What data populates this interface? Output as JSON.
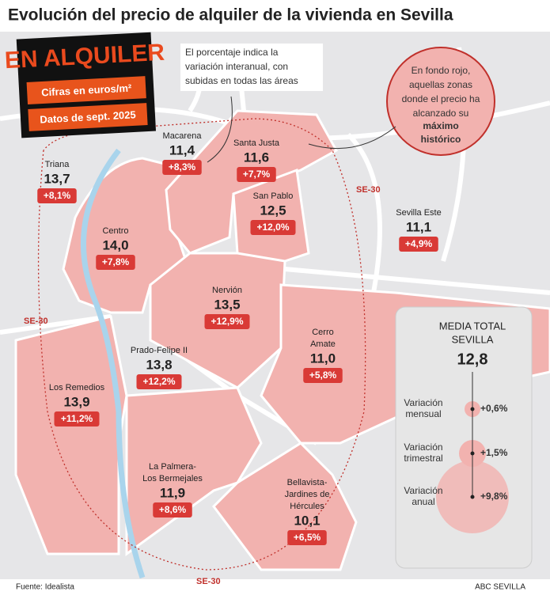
{
  "title": "Evolución del precio de alquiler de la vivienda en Sevilla",
  "badge": {
    "title": "EN ALQUILER",
    "lines": [
      "Cifras en euros/m²",
      "Datos de sept. 2025"
    ]
  },
  "note": [
    "El porcentaje indica la",
    "variación interanual, con",
    "subidas en todas las áreas"
  ],
  "legend_note": {
    "lines": [
      "En fondo rojo,",
      "aquellas zonas",
      "donde el precio ha",
      "alcanzado su"
    ],
    "bold_lines": [
      "máximo",
      "histórico"
    ]
  },
  "ring_road": "SE-30",
  "areas": [
    {
      "name": [
        "Triana"
      ],
      "price": "13,7",
      "change": "+8,1%"
    },
    {
      "name": [
        "Macarena"
      ],
      "price": "11,4",
      "change": "+8,3%"
    },
    {
      "name": [
        "Santa Justa"
      ],
      "price": "11,6",
      "change": "+7,7%"
    },
    {
      "name": [
        "San Pablo"
      ],
      "price": "12,5",
      "change": "+12,0%"
    },
    {
      "name": [
        "Sevilla Este"
      ],
      "price": "11,1",
      "change": "+4,9%"
    },
    {
      "name": [
        "Centro"
      ],
      "price": "14,0",
      "change": "+7,8%"
    },
    {
      "name": [
        "Nervión"
      ],
      "price": "13,5",
      "change": "+12,9%"
    },
    {
      "name": [
        "Cerro",
        "Amate"
      ],
      "price": "11,0",
      "change": "+5,8%"
    },
    {
      "name": [
        "Prado-Felipe II"
      ],
      "price": "13,8",
      "change": "+12,2%"
    },
    {
      "name": [
        "Los Remedios"
      ],
      "price": "13,9",
      "change": "+11,2%"
    },
    {
      "name": [
        "La Palmera-",
        "Los Bermejales"
      ],
      "price": "11,9",
      "change": "+8,6%"
    },
    {
      "name": [
        "Bellavista-",
        "Jardines de",
        "Hércules"
      ],
      "price": "10,1",
      "change": "+6,5%"
    }
  ],
  "summary": {
    "title": [
      "MEDIA TOTAL",
      "SEVILLA"
    ],
    "value": "12,8",
    "rows": [
      {
        "label": [
          "Variación",
          "mensual"
        ],
        "change": "+0,6%"
      },
      {
        "label": [
          "Variación",
          "trimestral"
        ],
        "change": "+1,5%"
      },
      {
        "label": [
          "Variación",
          "anual"
        ],
        "change": "+9,8%"
      }
    ]
  },
  "source": "Fuente: Idealista",
  "credit": "ABC SEVILLA"
}
